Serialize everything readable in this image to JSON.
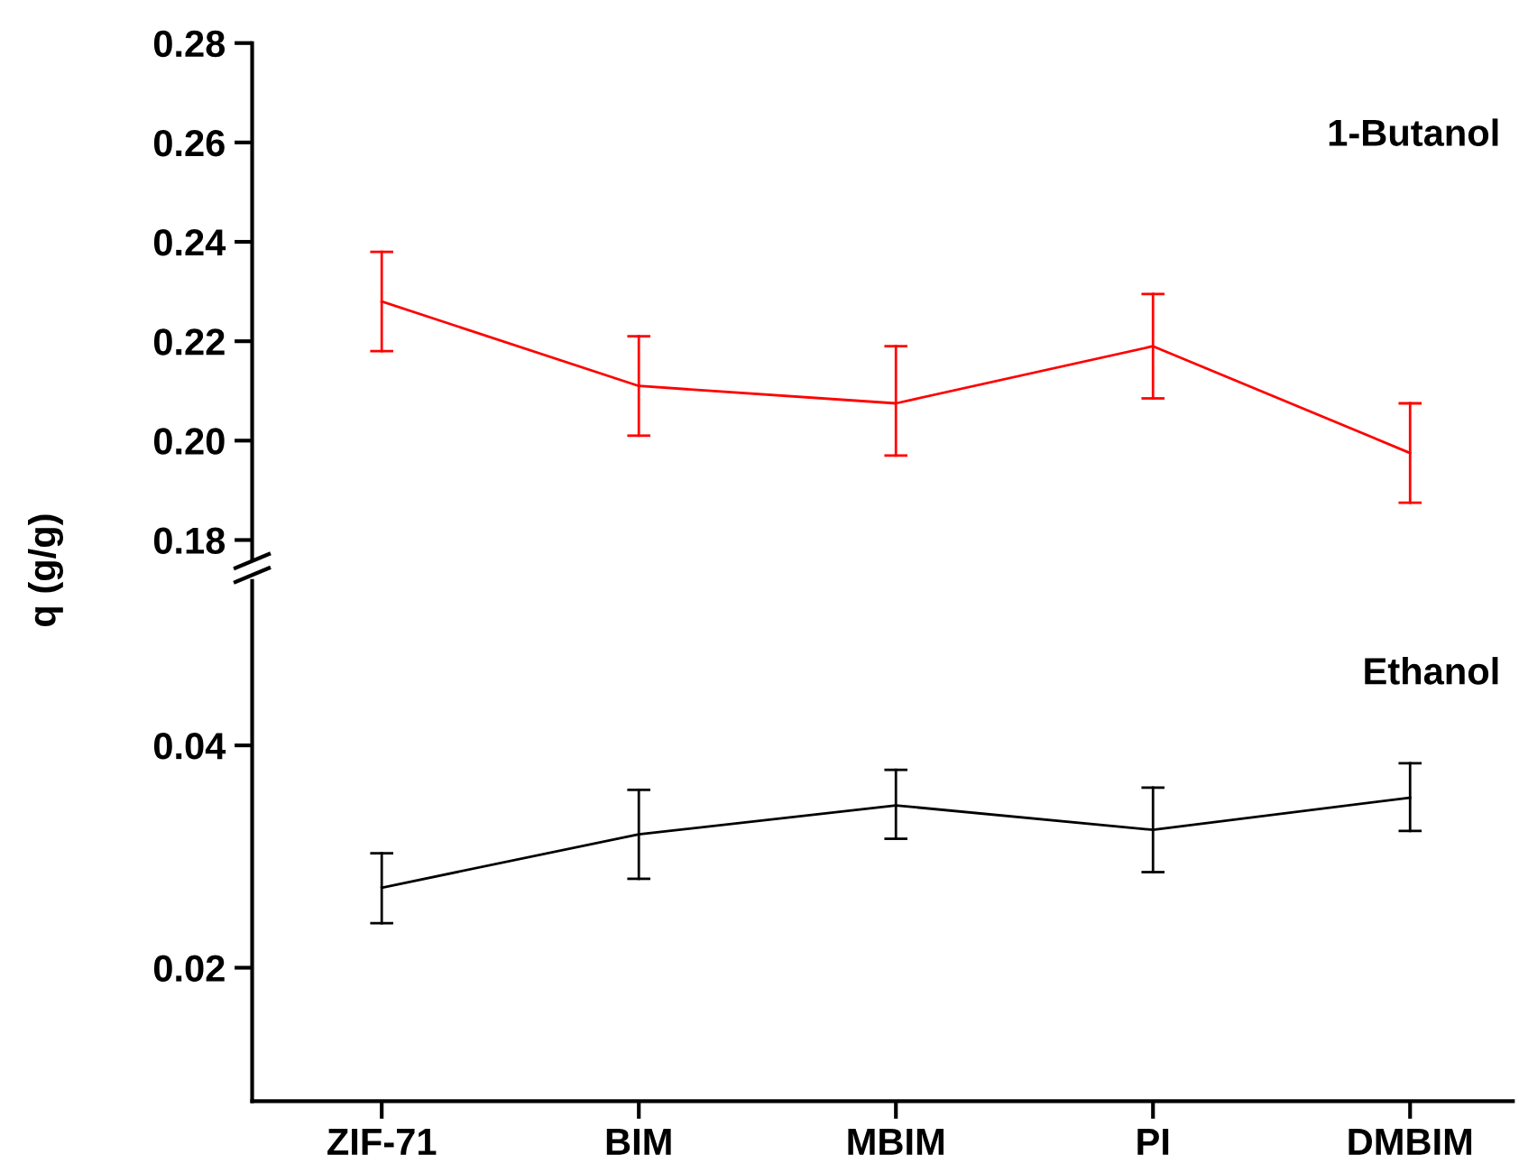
{
  "chart_data": [
    {
      "type": "line",
      "ylim": [
        0.176,
        0.28
      ],
      "yticks": [
        {
          "value": 0.18,
          "label": "0.18"
        },
        {
          "value": 0.2,
          "label": "0.20"
        },
        {
          "value": 0.22,
          "label": "0.22"
        },
        {
          "value": 0.24,
          "label": "0.24"
        },
        {
          "value": 0.26,
          "label": "0.26"
        },
        {
          "value": 0.28,
          "label": "0.28"
        }
      ],
      "tick_labels": "y",
      "grid": false,
      "legend": false,
      "marker": "none",
      "line_style": "solid",
      "series": [
        {
          "name": "1-Butanol",
          "color": "#ff0000",
          "values": [
            0.228,
            0.211,
            0.2075,
            0.219,
            0.1975
          ],
          "errors": [
            [
              0.218,
              0.238
            ],
            [
              0.201,
              0.221
            ],
            [
              0.197,
              0.219
            ],
            [
              0.2085,
              0.2295
            ],
            [
              0.1875,
              0.2075
            ]
          ]
        }
      ]
    },
    {
      "type": "line",
      "categories": [
        "ZIF-71",
        "BIM",
        "MBIM",
        "PI",
        "DMBIM"
      ],
      "ylabel": "q (g/g)",
      "ylim": [
        0.008,
        0.0548
      ],
      "yticks": [
        {
          "value": 0.02,
          "label": "0.02"
        },
        {
          "value": 0.04,
          "label": "0.04"
        }
      ],
      "grid": false,
      "legend": false,
      "marker": "none",
      "line_style": "solid",
      "series": [
        {
          "name": "Ethanol",
          "color": "#000000",
          "values": [
            0.0272,
            0.032,
            0.0346,
            0.0324,
            0.0353
          ],
          "errors": [
            [
              0.024,
              0.0303
            ],
            [
              0.028,
              0.036
            ],
            [
              0.0316,
              0.0378
            ],
            [
              0.0286,
              0.0362
            ],
            [
              0.0323,
              0.0384
            ]
          ]
        }
      ]
    }
  ]
}
